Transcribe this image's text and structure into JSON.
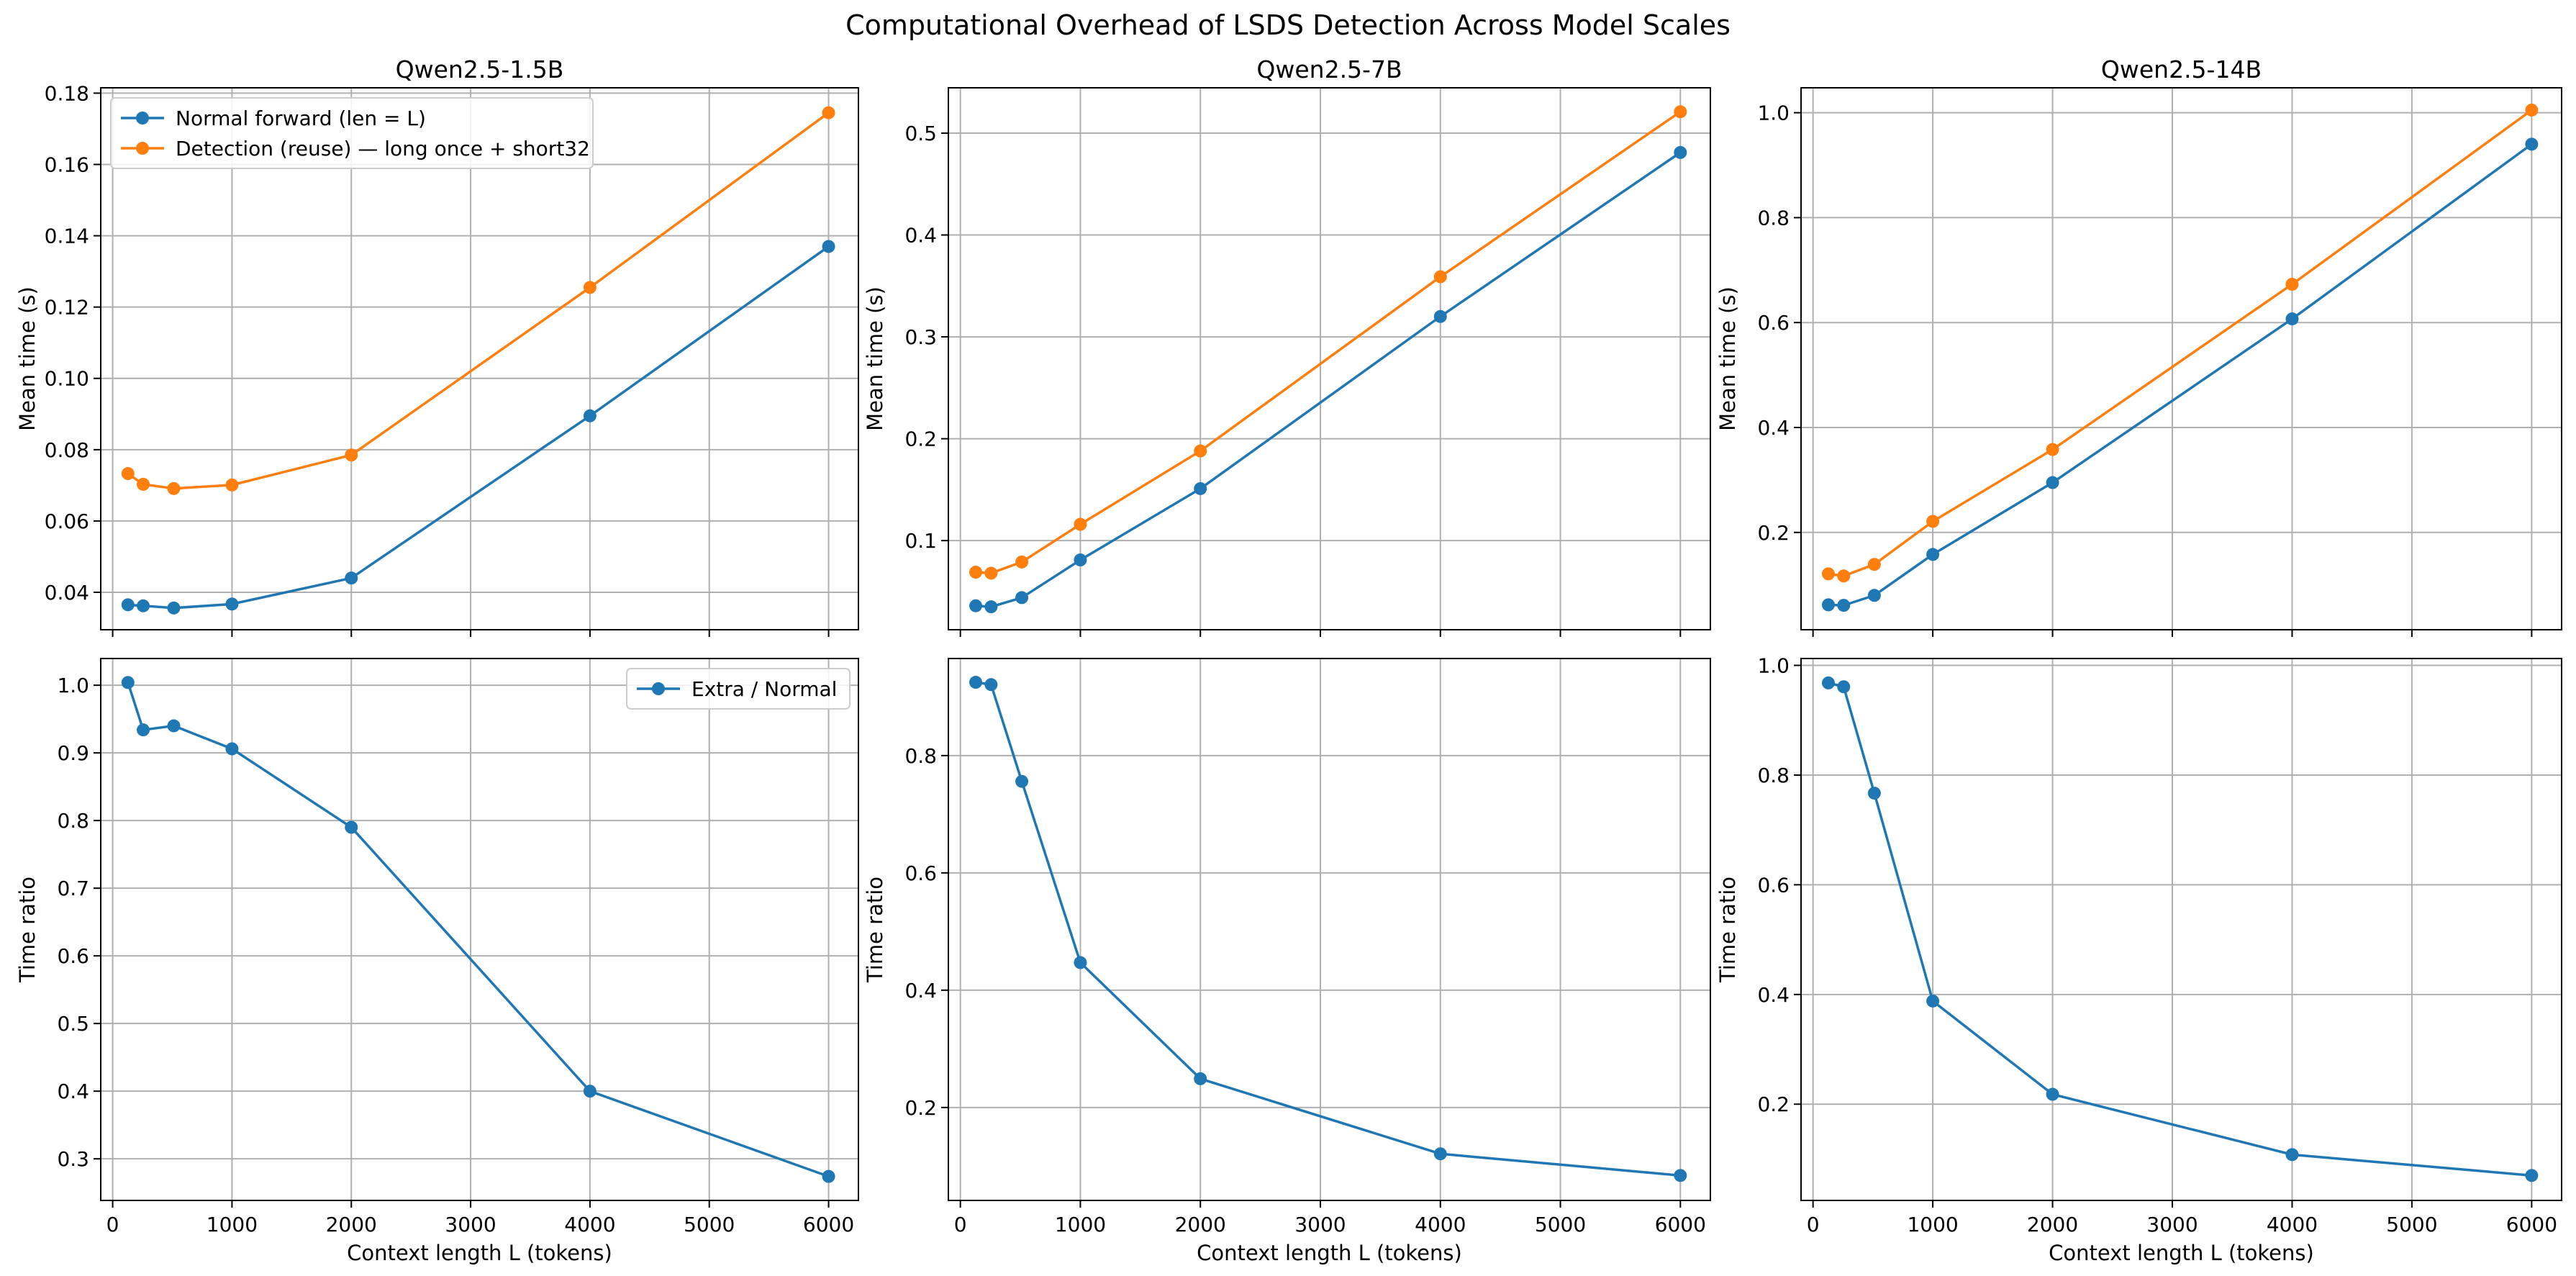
{
  "chart_data": {
    "title": "Computational Overhead of LSDS Detection Across Model Scales",
    "x": [
      128,
      256,
      512,
      1000,
      2000,
      4000,
      6000
    ],
    "xticks": [
      0,
      1000,
      2000,
      3000,
      4000,
      5000,
      6000
    ],
    "panels": [
      {
        "id": "top-1-5b",
        "type": "line",
        "title": "Qwen2.5-1.5B",
        "xlabel": "",
        "ylabel": "Mean time (s)",
        "xlim": [
          -100,
          6250
        ],
        "ylim": [
          0.0295,
          0.1815
        ],
        "yticks": [
          "0.04",
          "0.06",
          "0.08",
          "0.10",
          "0.12",
          "0.14",
          "0.16",
          "0.18"
        ],
        "grid": true,
        "legend": "top-left",
        "series": [
          {
            "name": "Normal forward (len = L)",
            "color": "#1f77b4",
            "values": [
              0.0365,
              0.0362,
              0.0356,
              0.0367,
              0.044,
              0.0895,
              0.137
            ]
          },
          {
            "name": "Detection (reuse) — long once + short32",
            "color": "#ff7f0e",
            "values": [
              0.0733,
              0.0703,
              0.0691,
              0.0701,
              0.0785,
              0.1255,
              0.1745
            ]
          }
        ]
      },
      {
        "id": "top-7b",
        "type": "line",
        "title": "Qwen2.5-7B",
        "xlabel": "",
        "ylabel": "Mean time (s)",
        "xlim": [
          -100,
          6250
        ],
        "ylim": [
          0.0125,
          0.5445
        ],
        "yticks": [
          "0.1",
          "0.2",
          "0.3",
          "0.4",
          "0.5"
        ],
        "grid": true,
        "legend": "none",
        "series": [
          {
            "name": "Normal forward (len = L)",
            "color": "#1f77b4",
            "values": [
              0.036,
              0.035,
              0.044,
              0.081,
              0.151,
              0.32,
              0.481
            ]
          },
          {
            "name": "Detection (reuse) — long once + short32",
            "color": "#ff7f0e",
            "values": [
              0.069,
              0.068,
              0.079,
              0.116,
              0.188,
              0.359,
              0.521
            ]
          }
        ]
      },
      {
        "id": "top-14b",
        "type": "line",
        "title": "Qwen2.5-14B",
        "xlabel": "",
        "ylabel": "Mean time (s)",
        "xlim": [
          -100,
          6250
        ],
        "ylim": [
          0.0145,
          1.0475
        ],
        "yticks": [
          "0.2",
          "0.4",
          "0.6",
          "0.8",
          "1.0"
        ],
        "grid": true,
        "legend": "none",
        "series": [
          {
            "name": "Normal forward (len = L)",
            "color": "#1f77b4",
            "values": [
              0.062,
              0.061,
              0.08,
              0.158,
              0.295,
              0.607,
              0.94
            ]
          },
          {
            "name": "Detection (reuse) — long once + short32",
            "color": "#ff7f0e",
            "values": [
              0.121,
              0.117,
              0.139,
              0.221,
              0.358,
              0.673,
              1.005
            ]
          }
        ]
      },
      {
        "id": "bot-1-5b",
        "type": "line",
        "title": "",
        "xlabel": "Context length L (tokens)",
        "ylabel": "Time ratio",
        "xlim": [
          -100,
          6250
        ],
        "ylim": [
          0.2385,
          1.0395
        ],
        "yticks": [
          "0.3",
          "0.4",
          "0.5",
          "0.6",
          "0.7",
          "0.8",
          "0.9",
          "1.0"
        ],
        "grid": true,
        "legend": "top-right",
        "series": [
          {
            "name": "Extra / Normal",
            "color": "#1f77b4",
            "values": [
              1.004,
              0.934,
              0.94,
              0.906,
              0.79,
              0.4,
              0.274
            ]
          }
        ]
      },
      {
        "id": "bot-7b",
        "type": "line",
        "title": "",
        "xlabel": "Context length L (tokens)",
        "ylabel": "Time ratio",
        "xlim": [
          -100,
          6250
        ],
        "ylim": [
          0.0415,
          0.9655
        ],
        "yticks": [
          "0.2",
          "0.4",
          "0.6",
          "0.8"
        ],
        "grid": true,
        "legend": "none",
        "series": [
          {
            "name": "Extra / Normal",
            "color": "#1f77b4",
            "values": [
              0.925,
              0.921,
              0.756,
              0.447,
              0.249,
              0.121,
              0.084
            ]
          }
        ]
      },
      {
        "id": "bot-14b",
        "type": "line",
        "title": "",
        "xlabel": "Context length L (tokens)",
        "ylabel": "Time ratio",
        "xlim": [
          -100,
          6250
        ],
        "ylim": [
          0.0245,
          1.0125
        ],
        "yticks": [
          "0.2",
          "0.4",
          "0.6",
          "0.8",
          "1.0"
        ],
        "grid": true,
        "legend": "none",
        "series": [
          {
            "name": "Extra / Normal",
            "color": "#1f77b4",
            "values": [
              0.968,
              0.961,
              0.767,
              0.388,
              0.218,
              0.108,
              0.07
            ]
          }
        ]
      }
    ]
  }
}
